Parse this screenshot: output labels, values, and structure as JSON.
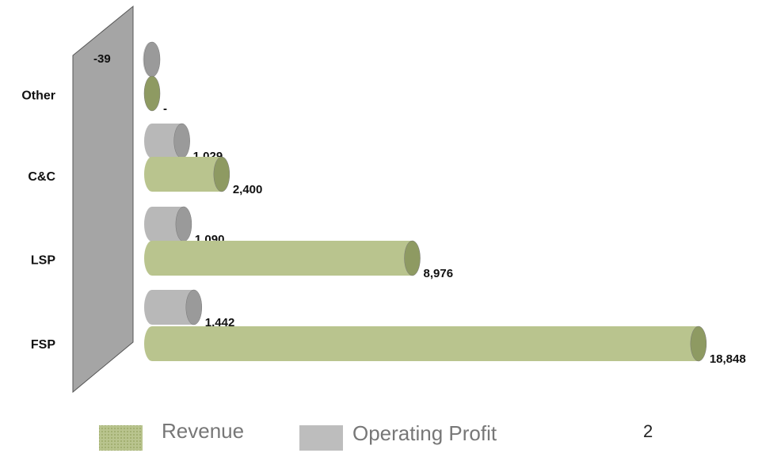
{
  "chart_data": {
    "type": "bar",
    "orientation": "horizontal",
    "categories": [
      "Other",
      "C&C",
      "LSP",
      "FSP"
    ],
    "series": [
      {
        "name": "Operating Profit",
        "color": "#b8b8b8",
        "values": [
          -39,
          1029,
          1090,
          1442
        ],
        "value_labels": [
          "-39",
          "1,029",
          "1,090",
          "1,442"
        ]
      },
      {
        "name": "Revenue",
        "color": "#b9c48e",
        "values": [
          0,
          2400,
          8976,
          18848
        ],
        "value_labels": [
          "-",
          "2,400",
          "8,976",
          "18,848"
        ]
      }
    ],
    "xlim": [
      0,
      20000
    ],
    "page_number": "2"
  }
}
